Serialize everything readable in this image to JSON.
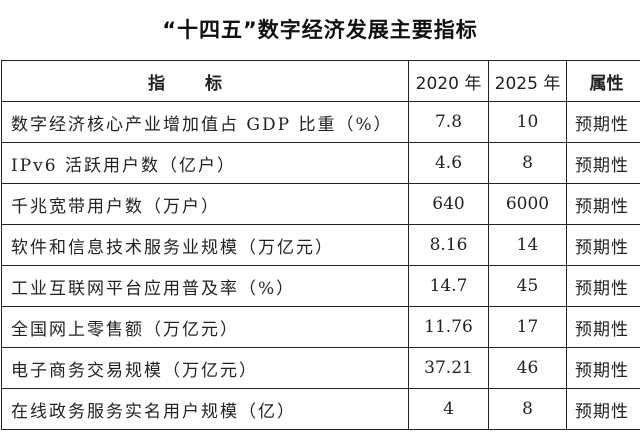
{
  "title": "“十四五”数字经济发展主要指标",
  "table": {
    "headers": [
      "指标",
      "2020 年",
      "2025 年",
      "属性"
    ],
    "rows": [
      {
        "name": "数字经济核心产业增加值占 GDP 比重（%）",
        "y2020": "7.8",
        "y2025": "10",
        "attr": "预期性"
      },
      {
        "name": "IPv6 活跃用户数（亿户）",
        "y2020": "4.6",
        "y2025": "8",
        "attr": "预期性"
      },
      {
        "name": "千兆宽带用户数（万户）",
        "y2020": "640",
        "y2025": "6000",
        "attr": "预期性"
      },
      {
        "name": "软件和信息技术服务业规模（万亿元）",
        "y2020": "8.16",
        "y2025": "14",
        "attr": "预期性"
      },
      {
        "name": "工业互联网平台应用普及率（%）",
        "y2020": "14.7",
        "y2025": "45",
        "attr": "预期性"
      },
      {
        "name": "全国网上零售额（万亿元）",
        "y2020": "11.76",
        "y2025": "17",
        "attr": "预期性"
      },
      {
        "name": "电子商务交易规模（万亿元）",
        "y2020": "37.21",
        "y2025": "46",
        "attr": "预期性"
      },
      {
        "name": "在线政务服务实名用户规模（亿）",
        "y2020": "4",
        "y2025": "8",
        "attr": "预期性"
      }
    ]
  }
}
